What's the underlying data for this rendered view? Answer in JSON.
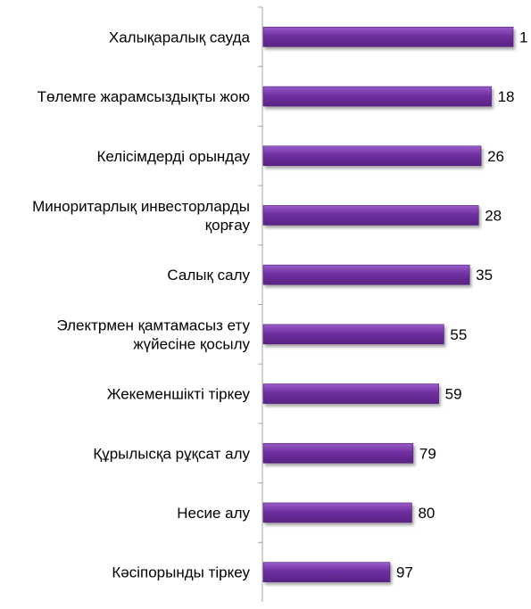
{
  "chart_data": {
    "type": "bar",
    "orientation": "horizontal",
    "categories": [
      [
        "Халықаралық сауда"
      ],
      [
        "Төлемге жарамсыздықты жою"
      ],
      [
        "Келісімдерді орындау"
      ],
      [
        "Миноритарлық инвесторларды",
        "қорғау"
      ],
      [
        "Салық салу"
      ],
      [
        "Электрмен қамтамасыз ету",
        "жүйесіне қосылу"
      ],
      [
        "Жекеменшікті тіркеу"
      ],
      [
        "Құрылысқа рұқсат алу"
      ],
      [
        "Несие алу"
      ],
      [
        "Кәсіпорынды тіркеу"
      ]
    ],
    "values": [
      1,
      18,
      26,
      28,
      35,
      55,
      59,
      79,
      80,
      97
    ],
    "data_labels": [
      "1",
      "18",
      "26",
      "28",
      "35",
      "55",
      "59",
      "79",
      "80",
      "97"
    ],
    "title": "",
    "xlabel": "",
    "ylabel": "",
    "bar_color": "#7030a0",
    "bar_color_light": "#9a5cc9",
    "bar_color_dark": "#4f1f75",
    "axis_color": "#a6a6a6",
    "grid": false,
    "legend": "none"
  }
}
